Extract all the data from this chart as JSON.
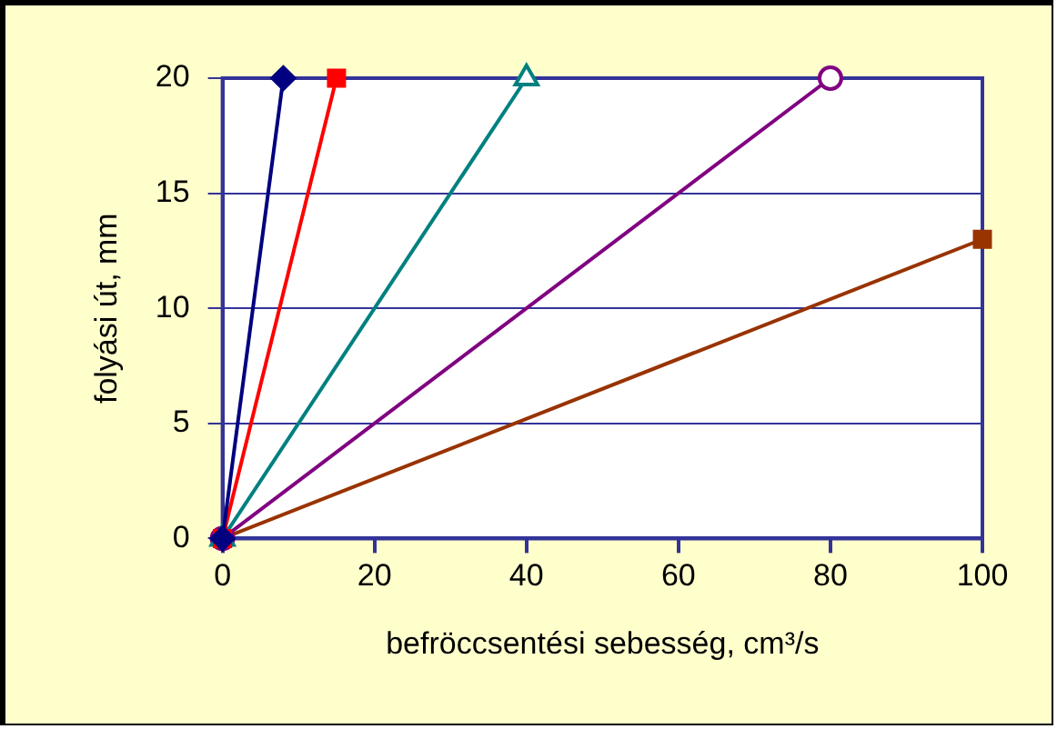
{
  "chart_data": {
    "type": "line",
    "xlabel": "befröccsentési sebesség, cm³/s",
    "ylabel": "folyási út, mm",
    "xlim": [
      0,
      100
    ],
    "xticks": [
      0,
      20,
      40,
      60,
      80,
      100
    ],
    "ylim": [
      0,
      20
    ],
    "yticks": [
      0,
      5,
      10,
      15,
      20
    ],
    "grid": "y",
    "legend": false,
    "line_style": "solid",
    "series": [
      {
        "color": "#000080",
        "x": [
          0,
          8
        ],
        "values": [
          0,
          20
        ],
        "marker": "diamond"
      },
      {
        "color": "#ff0000",
        "x": [
          0,
          15
        ],
        "values": [
          0,
          20
        ],
        "marker": "square"
      },
      {
        "color": "#008080",
        "x": [
          0,
          40
        ],
        "values": [
          0,
          20
        ],
        "marker": "triangle"
      },
      {
        "color": "#800080",
        "x": [
          0,
          80
        ],
        "values": [
          0,
          20
        ],
        "marker": "circle"
      },
      {
        "color": "#993300",
        "x": [
          0,
          100
        ],
        "values": [
          0,
          13
        ],
        "marker": "square"
      }
    ]
  }
}
